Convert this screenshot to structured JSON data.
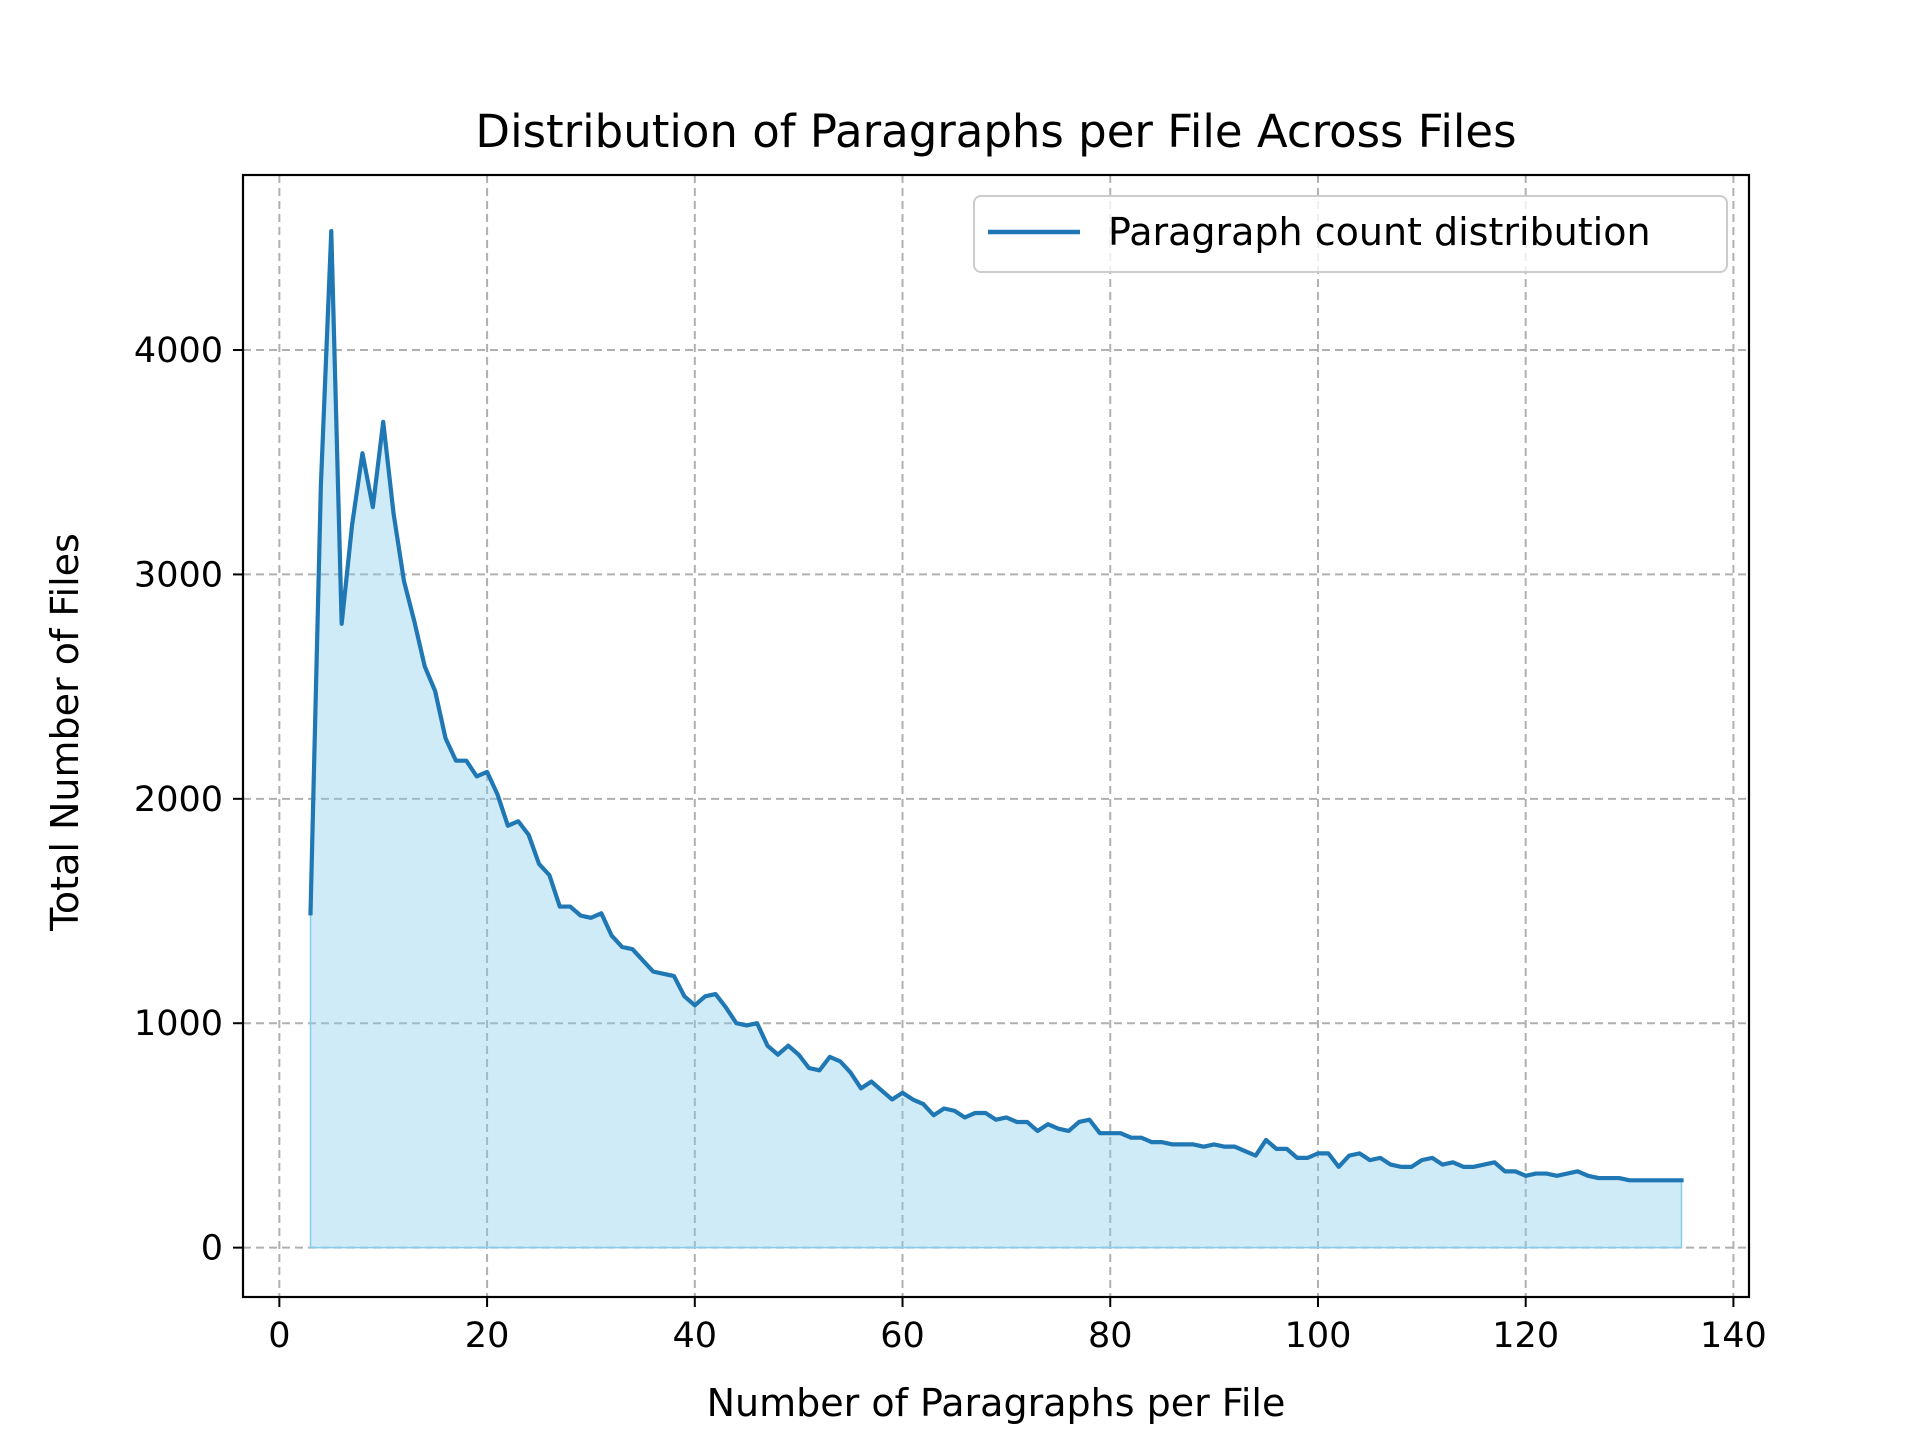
{
  "chart_data": {
    "type": "area",
    "title": "Distribution of Paragraphs per File Across Files",
    "xlabel": "Number of Paragraphs per File",
    "ylabel": "Total Number of Files",
    "xlim": [
      -3.5,
      141.5
    ],
    "ylim": [
      -220,
      4780
    ],
    "xticks": [
      0,
      20,
      40,
      60,
      80,
      100,
      120,
      140
    ],
    "yticks": [
      0,
      1000,
      2000,
      3000,
      4000
    ],
    "grid": true,
    "legend_position": "upper right",
    "colors": {
      "line": "#1f77b4",
      "fill": "#87ceeb",
      "grid": "#b0b0b0"
    },
    "series": [
      {
        "name": "Paragraph count distribution",
        "x": [
          3,
          4,
          5,
          6,
          7,
          8,
          9,
          10,
          11,
          12,
          13,
          14,
          15,
          16,
          17,
          18,
          19,
          20,
          21,
          22,
          23,
          24,
          25,
          26,
          27,
          28,
          29,
          30,
          31,
          32,
          33,
          34,
          35,
          36,
          37,
          38,
          39,
          40,
          41,
          42,
          43,
          44,
          45,
          46,
          47,
          48,
          49,
          50,
          51,
          52,
          53,
          54,
          55,
          56,
          57,
          58,
          59,
          60,
          61,
          62,
          63,
          64,
          65,
          66,
          67,
          68,
          69,
          70,
          71,
          72,
          73,
          74,
          75,
          76,
          77,
          78,
          79,
          80,
          81,
          82,
          83,
          84,
          85,
          86,
          87,
          88,
          89,
          90,
          91,
          92,
          93,
          94,
          95,
          96,
          97,
          98,
          99,
          100,
          101,
          102,
          103,
          104,
          105,
          106,
          107,
          108,
          109,
          110,
          111,
          112,
          113,
          114,
          115,
          116,
          117,
          118,
          119,
          120,
          121,
          122,
          123,
          124,
          125,
          126,
          127,
          128,
          129,
          130,
          131,
          132,
          133,
          134,
          135
        ],
        "values": [
          1490,
          3400,
          4530,
          2780,
          3220,
          3540,
          3300,
          3680,
          3270,
          2970,
          2790,
          2590,
          2480,
          2270,
          2170,
          2170,
          2100,
          2120,
          2020,
          1880,
          1900,
          1840,
          1710,
          1660,
          1520,
          1520,
          1480,
          1470,
          1490,
          1390,
          1340,
          1330,
          1280,
          1230,
          1220,
          1210,
          1120,
          1080,
          1120,
          1130,
          1070,
          1000,
          990,
          1000,
          900,
          860,
          900,
          860,
          800,
          790,
          850,
          830,
          780,
          710,
          740,
          700,
          660,
          690,
          660,
          640,
          590,
          620,
          610,
          580,
          600,
          600,
          570,
          580,
          560,
          560,
          520,
          550,
          530,
          520,
          560,
          570,
          510,
          510,
          510,
          490,
          490,
          470,
          470,
          460,
          460,
          460,
          450,
          460,
          450,
          450,
          430,
          410,
          480,
          440,
          440,
          400,
          400,
          420,
          420,
          360,
          410,
          420,
          390,
          400,
          370,
          360,
          360,
          390,
          400,
          370,
          380,
          360,
          360,
          370,
          380,
          340,
          340,
          320,
          330,
          330,
          320,
          330,
          340,
          320,
          310,
          310,
          310,
          300,
          300,
          300,
          300,
          300,
          300
        ]
      }
    ]
  }
}
